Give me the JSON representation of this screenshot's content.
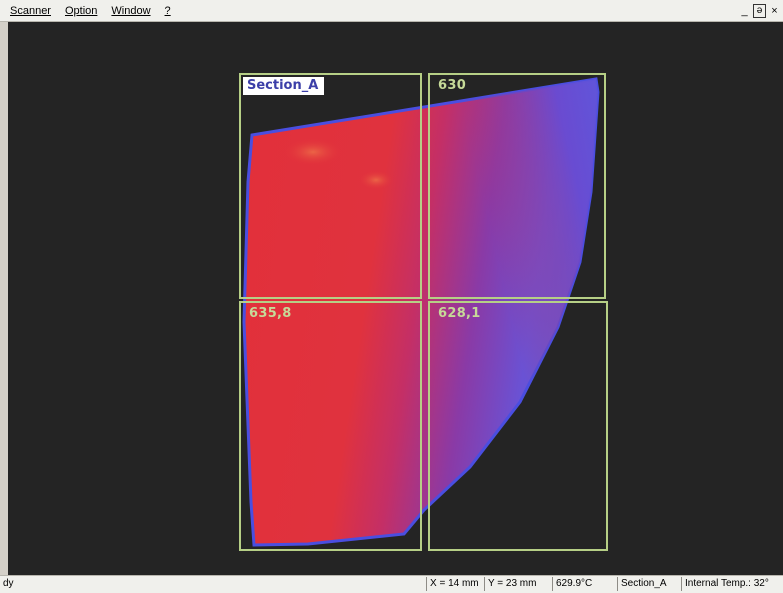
{
  "menu": {
    "items": [
      {
        "label": "Scanner"
      },
      {
        "label": "Option"
      },
      {
        "label": "Window"
      },
      {
        "label": "?"
      }
    ],
    "window_controls": {
      "minimize": "_",
      "restore": "ə",
      "close": "×"
    }
  },
  "thermal": {
    "zones": [
      {
        "name": "Section_A",
        "value": ""
      },
      {
        "name": "",
        "value": "630"
      },
      {
        "name": "",
        "value": "635,8"
      },
      {
        "name": "",
        "value": "628,1"
      }
    ],
    "colors": {
      "hot": "#e8333c",
      "mid": "#b8307a",
      "cool": "#5a58d8",
      "frame": "#b6cf86",
      "background": "#242424"
    }
  },
  "status": {
    "left": "dy",
    "x": "X = 14 mm",
    "y": "Y = 23 mm",
    "temperature": "629.9°C",
    "section": "Section_A",
    "internal_temp": "Internal Temp.: 32°"
  }
}
